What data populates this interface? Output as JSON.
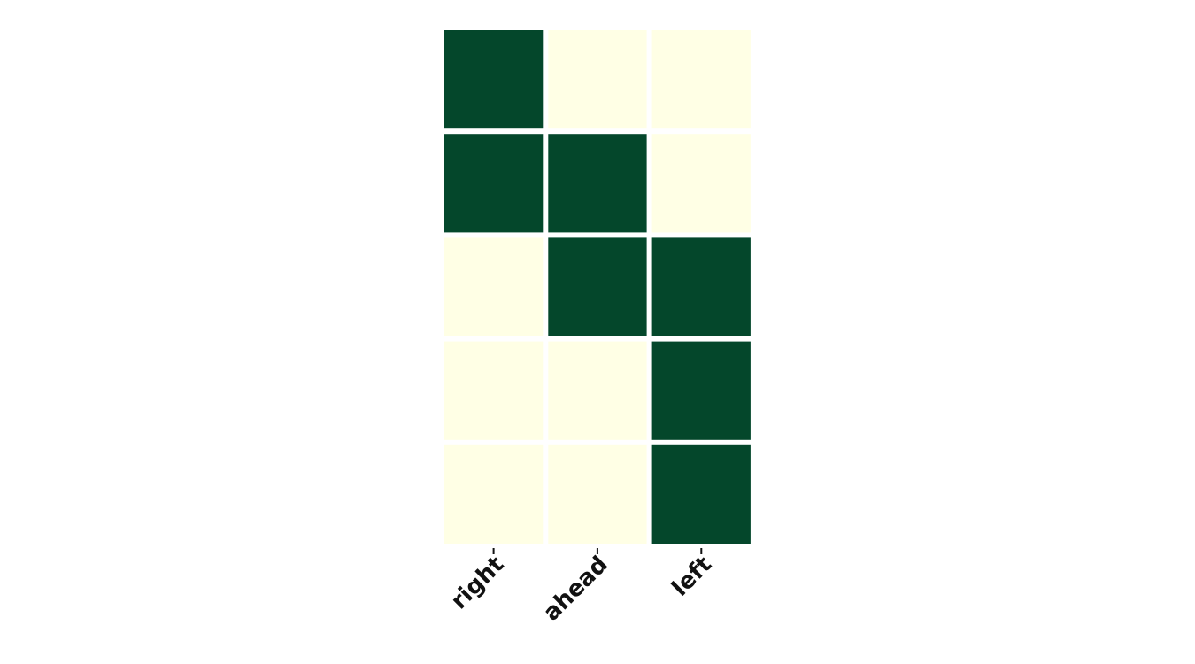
{
  "chart_data": {
    "type": "heatmap",
    "title": "",
    "xlabel": "",
    "ylabel": "",
    "x_categories": [
      "right",
      "ahead",
      "left"
    ],
    "rows": 5,
    "values": [
      [
        1,
        0,
        0
      ],
      [
        1,
        1,
        0
      ],
      [
        0,
        1,
        1
      ],
      [
        0,
        0,
        1
      ],
      [
        0,
        0,
        1
      ]
    ],
    "colors": {
      "high": "#04472b",
      "low": "#ffffe5",
      "cell_border": "#ffffff",
      "tick": "#111111"
    },
    "colorbar": false,
    "grid": false
  }
}
